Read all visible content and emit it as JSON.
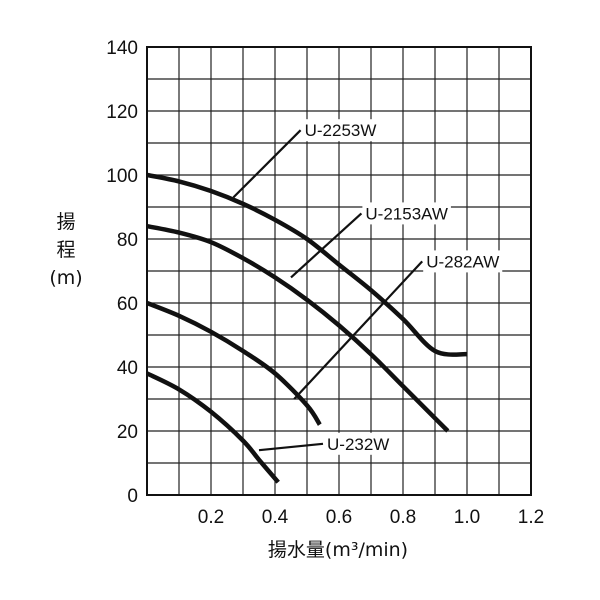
{
  "chart_data": {
    "type": "line",
    "xlabel": "揚水量(m³/min)",
    "ylabel": [
      "揚",
      "程",
      "(m)"
    ],
    "xlim": [
      0,
      1.2
    ],
    "ylim": [
      0,
      140
    ],
    "x_ticks": [
      "0.2",
      "0.4",
      "0.6",
      "0.8",
      "1.0",
      "1.2"
    ],
    "y_ticks": [
      "0",
      "20",
      "40",
      "60",
      "80",
      "100",
      "120",
      "140"
    ],
    "grid": true,
    "minor_grid_x_step": 0.1,
    "minor_grid_y_step": 10,
    "series": [
      {
        "name": "U-2253W",
        "x": [
          0,
          0.1,
          0.2,
          0.3,
          0.4,
          0.5,
          0.6,
          0.7,
          0.8,
          0.9,
          1.0
        ],
        "y": [
          100,
          98,
          95,
          91,
          86,
          80,
          72,
          64,
          55,
          45,
          44
        ]
      },
      {
        "name": "U-2153AW",
        "x": [
          0,
          0.1,
          0.2,
          0.3,
          0.4,
          0.5,
          0.6,
          0.7,
          0.8,
          0.9,
          0.94
        ],
        "y": [
          84,
          82,
          79,
          74,
          68,
          61,
          53,
          44,
          34,
          24,
          20
        ]
      },
      {
        "name": "U-282AW",
        "x": [
          0,
          0.1,
          0.2,
          0.3,
          0.4,
          0.5,
          0.54
        ],
        "y": [
          60,
          56,
          51,
          45,
          38,
          28,
          22
        ]
      },
      {
        "name": "U-232W",
        "x": [
          0,
          0.1,
          0.2,
          0.3,
          0.35,
          0.41
        ],
        "y": [
          38,
          33,
          26,
          17,
          11,
          4
        ]
      }
    ],
    "annotations": [
      {
        "series": "U-2253W",
        "text": "U-2253W",
        "point": [
          0.27,
          93
        ],
        "label_at": [
          0.48,
          114
        ]
      },
      {
        "series": "U-2153AW",
        "text": "U-2153AW",
        "point": [
          0.45,
          68
        ],
        "label_at": [
          0.67,
          88
        ]
      },
      {
        "series": "U-282AW",
        "text": "U-282AW",
        "point": [
          0.46,
          30
        ],
        "label_at": [
          0.86,
          73
        ]
      },
      {
        "series": "U-232W",
        "text": "U-232W",
        "point": [
          0.35,
          14
        ],
        "label_at": [
          0.55,
          16
        ]
      }
    ]
  }
}
